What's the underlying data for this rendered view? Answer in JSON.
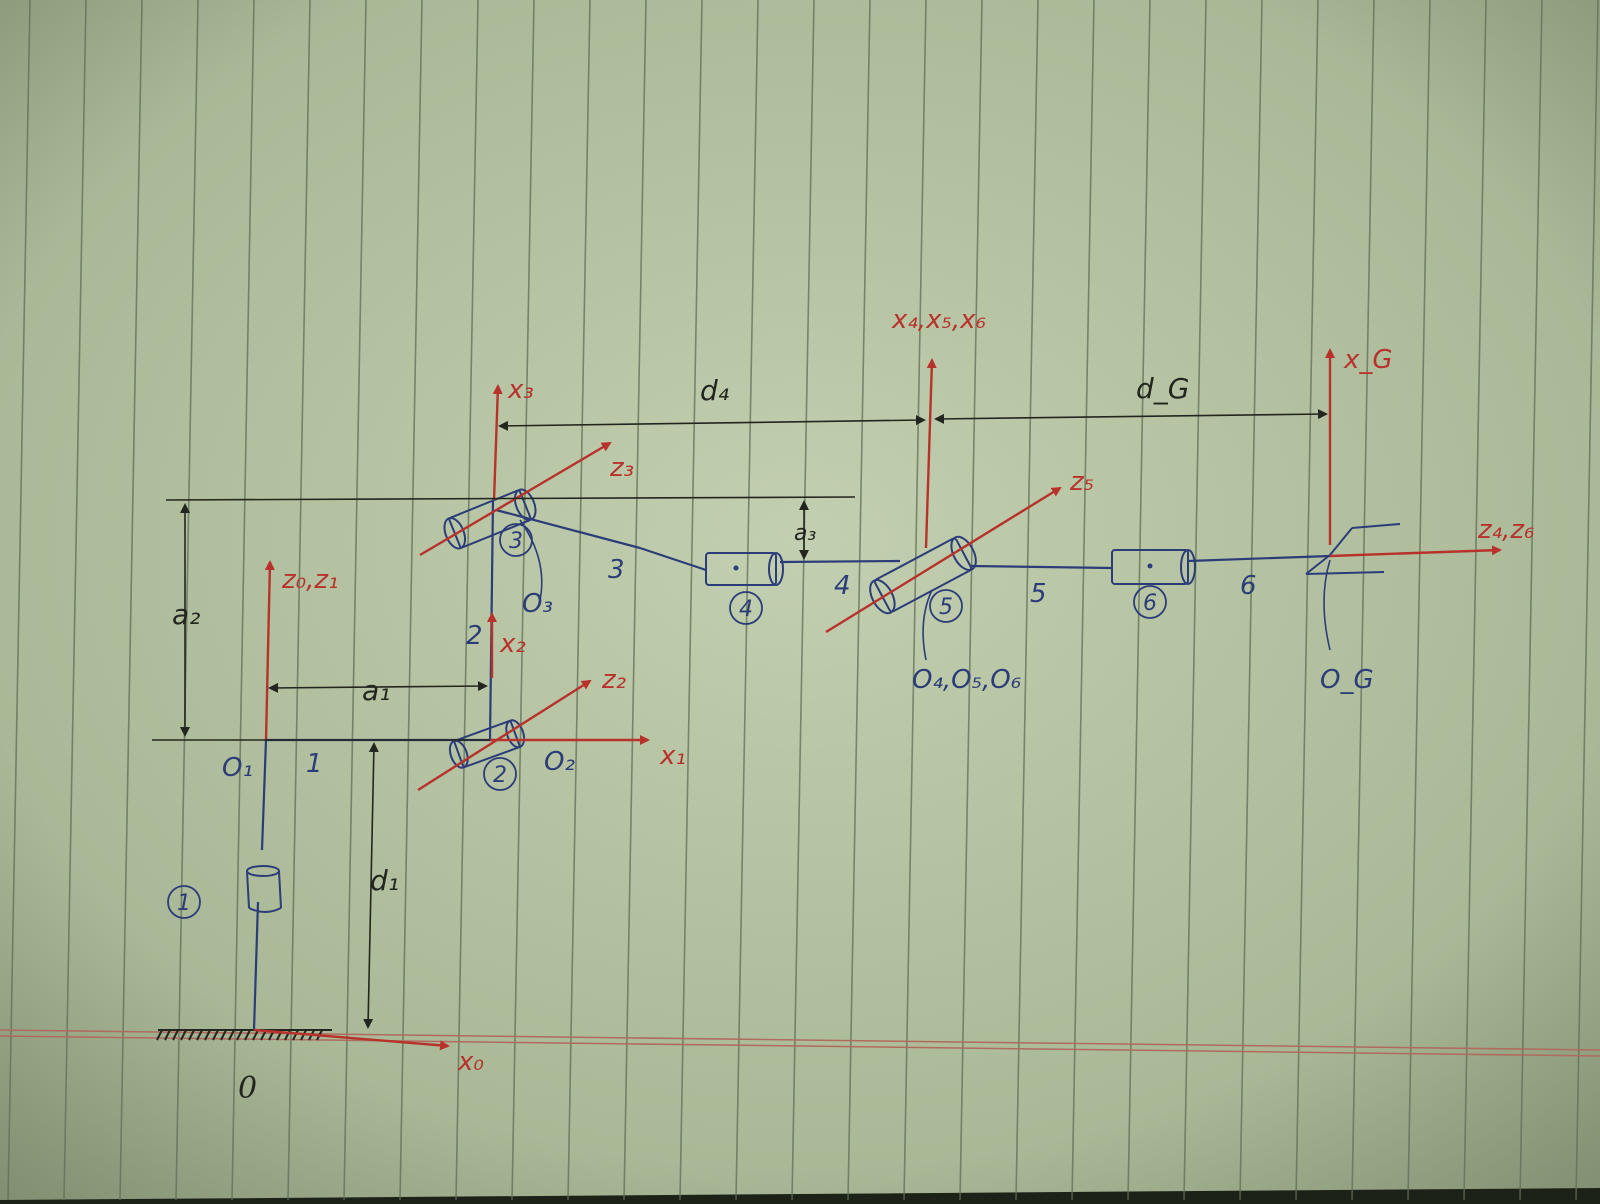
{
  "colors": {
    "paper": "#aebc9d",
    "rule": "#5f6e56",
    "margin": "#b06a5e",
    "blue": "#2c3c78",
    "red": "#b8322c",
    "black": "#23261f"
  },
  "joints": [
    "1",
    "2",
    "3",
    "4",
    "5",
    "6"
  ],
  "links": [
    "1",
    "2",
    "3",
    "4",
    "5",
    "6"
  ],
  "base_label": "0",
  "origins": {
    "o1": "O₁",
    "o2": "O₂",
    "o3": "O₃",
    "o456": "O₄,O₅,O₆",
    "og": "O_G"
  },
  "axes": {
    "x0": "x₀",
    "z0z1": "z₀,z₁",
    "x1": "x₁",
    "x2": "x₂",
    "z2": "z₂",
    "x3": "x₃",
    "z3": "z₃",
    "x456": "x₄,x₅,x₆",
    "z5": "z₅",
    "xg": "x_G",
    "z4z6": "z₄,z₆"
  },
  "dimensions": {
    "d1": "d₁",
    "a1": "a₁",
    "a2": "a₂",
    "a3": "a₃",
    "d4": "d₄",
    "dg": "d_G"
  }
}
